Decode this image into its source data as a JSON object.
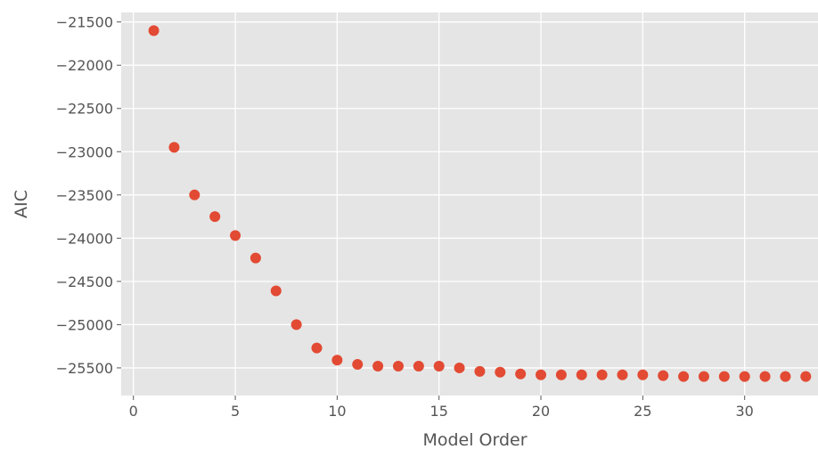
{
  "chart_data": {
    "type": "scatter",
    "title": "",
    "xlabel": "Model Order",
    "ylabel": "AIC",
    "xlim": [
      -0.6,
      33.6
    ],
    "ylim": [
      -25820,
      -21390
    ],
    "grid": true,
    "x_ticks": [
      0,
      5,
      10,
      15,
      20,
      25,
      30
    ],
    "x_tick_labels": [
      "0",
      "5",
      "10",
      "15",
      "20",
      "25",
      "30"
    ],
    "y_ticks": [
      -21500,
      -22000,
      -22500,
      -23000,
      -23500,
      -24000,
      -24500,
      -25000,
      -25500
    ],
    "y_tick_labels": [
      "−21500",
      "−22000",
      "−22500",
      "−23000",
      "−23500",
      "−24000",
      "−24500",
      "−25000",
      "−25500"
    ],
    "colors": {
      "point": "#E24A33",
      "plot_bg": "#E5E5E5",
      "grid": "#FFFFFF",
      "text": "#555555"
    },
    "x": [
      1,
      2,
      3,
      4,
      5,
      6,
      7,
      8,
      9,
      10,
      11,
      12,
      13,
      14,
      15,
      16,
      17,
      18,
      19,
      20,
      21,
      22,
      23,
      24,
      25,
      26,
      27,
      28,
      29,
      30,
      31,
      32,
      33
    ],
    "y": [
      -21600,
      -22950,
      -23500,
      -23750,
      -23970,
      -24230,
      -24610,
      -25000,
      -25270,
      -25410,
      -25460,
      -25480,
      -25480,
      -25480,
      -25480,
      -25500,
      -25540,
      -25550,
      -25570,
      -25580,
      -25580,
      -25580,
      -25580,
      -25580,
      -25580,
      -25590,
      -25600,
      -25600,
      -25600,
      -25600,
      -25600,
      -25600,
      -25600
    ]
  }
}
